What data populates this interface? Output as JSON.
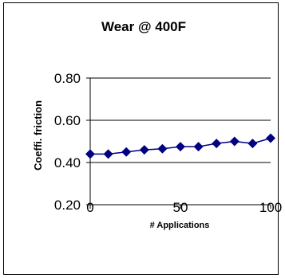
{
  "chart_data": {
    "type": "line",
    "title": "Wear @ 400F",
    "xlabel": "# Applications",
    "ylabel": "Coeffi. friction",
    "xlim": [
      0,
      100
    ],
    "ylim": [
      0.2,
      0.8
    ],
    "x_ticks": [
      "0",
      "50",
      "100"
    ],
    "x_tick_values": [
      0,
      50,
      100
    ],
    "y_ticks": [
      "0.80",
      "0.60",
      "0.40",
      "0.20"
    ],
    "y_tick_values": [
      0.8,
      0.6,
      0.4,
      0.2
    ],
    "grid": "horizontal",
    "legend": "none",
    "colors": {
      "series": "#000080",
      "axis": "#000000",
      "grid": "#000000"
    },
    "series": [
      {
        "x": [
          0,
          10,
          20,
          30,
          40,
          50,
          60,
          70,
          80,
          90,
          100
        ],
        "values": [
          0.44,
          0.44,
          0.45,
          0.46,
          0.465,
          0.475,
          0.475,
          0.49,
          0.5,
          0.49,
          0.515
        ]
      }
    ]
  }
}
